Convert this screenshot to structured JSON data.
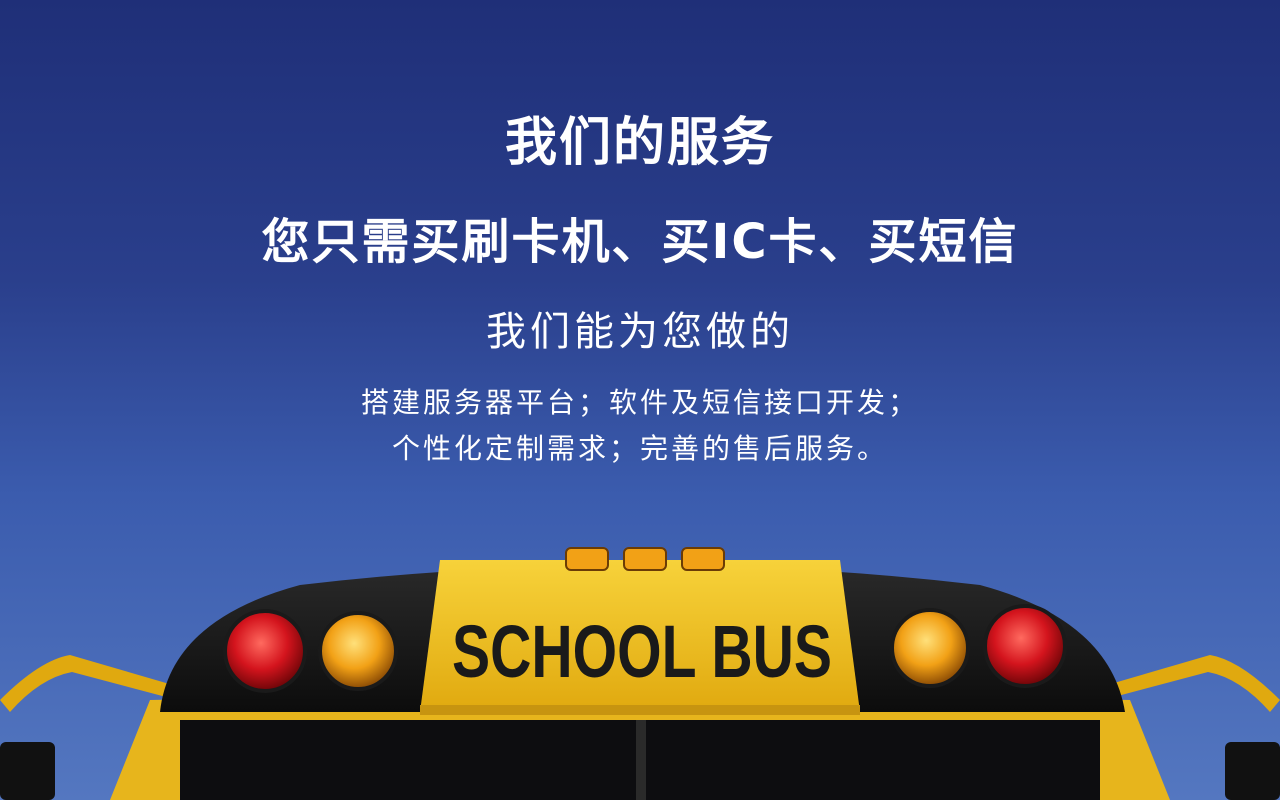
{
  "hero": {
    "title": "我们的服务",
    "subtitle": "您只需买刷卡机、买IC卡、买短信",
    "lead": "我们能为您做的",
    "description": [
      "搭建服务器平台；软件及短信接口开发；",
      "个性化定制需求；完善的售后服务。"
    ]
  },
  "bus_sign": {
    "text": "SCHOOL BUS"
  },
  "colors": {
    "sky_top": "#1f2f78",
    "sky_bottom": "#5477c0",
    "bus_yellow": "#f2c21a",
    "bus_black": "#151515",
    "light_red": "#d4141d",
    "light_amber": "#f2a116"
  }
}
